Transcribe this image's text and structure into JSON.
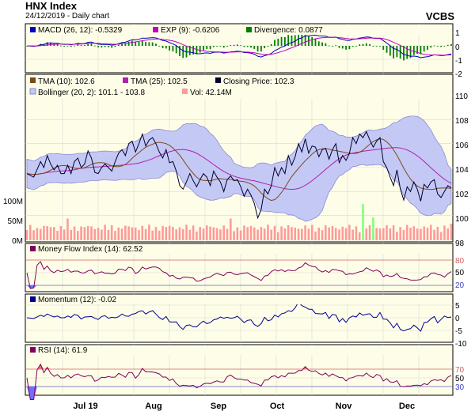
{
  "header": {
    "title": "HNX Index",
    "date_line": "24/12/2019 - Daily chart",
    "brand": "VCBS"
  },
  "colors": {
    "panel_bg": "#fefee8",
    "border": "#000000",
    "grid": "#d8d8d8",
    "macd": "#0000c0",
    "exp": "#c000c0",
    "divergence": "#008000",
    "tma10": "#7a4a1c",
    "tma25": "#b020b0",
    "close": "#000030",
    "boll_fill": "#c4c8f4",
    "boll_line": "#8a8ad8",
    "vol": "#ff9a9a",
    "vol_hi": "#80ff80",
    "mfi": "#800060",
    "momentum": "#000090",
    "rsi": "#800060",
    "ob_fill": "#ff7070",
    "os_fill": "#7070ff",
    "ref_line": "#d06060"
  },
  "panels": {
    "macd": {
      "legend": [
        "MACD (26, 12): -0.5329",
        "EXP (9): -0.6206",
        "Divergence: 0.0877"
      ],
      "ticks": [
        "1",
        "0",
        "-1",
        "-2"
      ]
    },
    "price": {
      "legend": [
        "TMA (10): 102.6",
        "TMA (25): 102.5",
        "Closing Price: 102.3",
        "Bollinger (20, 2): 101.1 - 103.8",
        "Vol: 42.14M"
      ],
      "ticks": [
        "110",
        "108",
        "106",
        "104",
        "102",
        "100",
        "98"
      ],
      "vol_ticks": [
        "100M",
        "50M",
        "0M"
      ]
    },
    "mfi": {
      "legend": [
        "Money Flow Index (14): 62.52"
      ],
      "ticks": [
        "80",
        "50",
        "20"
      ]
    },
    "momentum": {
      "legend": [
        "Momentum (12): -0.02"
      ],
      "ticks": [
        "5",
        "0",
        "-5",
        "-10"
      ]
    },
    "rsi": {
      "legend": [
        "RSI (14): 61.9"
      ],
      "ticks": [
        "70",
        "50",
        "30"
      ]
    }
  },
  "x_labels": [
    "Jul 19",
    "Aug",
    "Sep",
    "Oct",
    "Nov",
    "Dec"
  ],
  "chart_data": {
    "type": "line",
    "title": "HNX Index",
    "subtitle": "24/12/2019 - Daily chart",
    "x_range": [
      "Jul 19",
      "Dec"
    ],
    "close": {
      "x": [
        0,
        2,
        4,
        5,
        6,
        7,
        8,
        9,
        10,
        11,
        12,
        13,
        14,
        15,
        16,
        17,
        18,
        19,
        20,
        21,
        22,
        23,
        24,
        25,
        26,
        27,
        28,
        29,
        30,
        31,
        32,
        33,
        34,
        35,
        36,
        37,
        38,
        39,
        40,
        41,
        42,
        43,
        44,
        45,
        46,
        47,
        48,
        49,
        50,
        51,
        52,
        53,
        54,
        55,
        56,
        57,
        58,
        59,
        60,
        61,
        62,
        63,
        64,
        65,
        66,
        67,
        68,
        69,
        70,
        71,
        72,
        73,
        74,
        75,
        76,
        77,
        78,
        79,
        80,
        81,
        82,
        83,
        84,
        85,
        86,
        87,
        88,
        89,
        90,
        91,
        92,
        93,
        94,
        95,
        96,
        97,
        98,
        99,
        100,
        101,
        102,
        103,
        104,
        105,
        106,
        107,
        108,
        109,
        110,
        111,
        112,
        113,
        114,
        115,
        116,
        117,
        118,
        119,
        120,
        121,
        122,
        123,
        124,
        125
      ],
      "y": [
        103.5,
        103.2,
        104.5,
        104.0,
        105.0,
        104.3,
        103.8,
        104.2,
        103.5,
        103.5,
        104.2,
        103.5,
        104.5,
        104.8,
        104.0,
        104.3,
        105.4,
        104.8,
        103.6,
        103.5,
        104.0,
        104.3,
        104.0,
        103.7,
        104.5,
        105.2,
        105.5,
        105.0,
        106.0,
        106.2,
        105.3,
        106.0,
        106.8,
        105.8,
        106.3,
        106.5,
        106.0,
        105.3,
        104.8,
        105.5,
        104.4,
        104.5,
        103.7,
        102.5,
        102.2,
        102.8,
        103.5,
        102.9,
        102.4,
        103.0,
        103.5,
        103.2,
        102.5,
        103.7,
        103.2,
        102.8,
        102.0,
        103.0,
        103.3,
        102.9,
        103.0,
        102.4,
        101.6,
        102.2,
        101.7,
        101.0,
        99.8,
        100.5,
        102.2,
        101.8,
        102.5,
        104.0,
        103.3,
        104.0,
        103.5,
        105.0,
        104.2,
        104.9,
        106.0,
        105.3,
        106.4,
        105.2,
        105.8,
        105.7,
        104.9,
        105.5,
        105.6,
        104.7,
        105.5,
        106.0,
        104.4,
        105.0,
        104.6,
        105.2,
        106.5,
        106.0,
        106.8,
        106.5,
        107.0,
        106.3,
        105.7,
        106.2,
        106.5,
        104.5,
        104.0,
        103.2,
        102.5,
        103.8,
        102.2,
        101.3,
        102.4,
        102.0,
        102.8,
        102.2,
        101.2,
        102.6,
        102.3,
        102.8,
        103.0,
        101.8,
        101.5,
        102.0,
        102.5,
        102.3
      ],
      "last": 102.3
    },
    "tma10_last": 102.6,
    "tma25_last": 102.5,
    "bollinger_last": [
      101.1,
      103.8
    ],
    "volume_last_M": 42.14,
    "macd": {
      "macd": -0.5329,
      "exp": -0.6206,
      "divergence": 0.0877
    },
    "mfi_last": 62.52,
    "momentum_last": -0.02,
    "rsi_last": 61.9,
    "ylim_price": [
      98,
      110
    ],
    "ylim_macd": [
      -2,
      1
    ],
    "ylim_mfi": [
      0,
      100
    ],
    "ylim_momentum": [
      -10,
      5
    ],
    "ylim_rsi": [
      0,
      100
    ]
  }
}
